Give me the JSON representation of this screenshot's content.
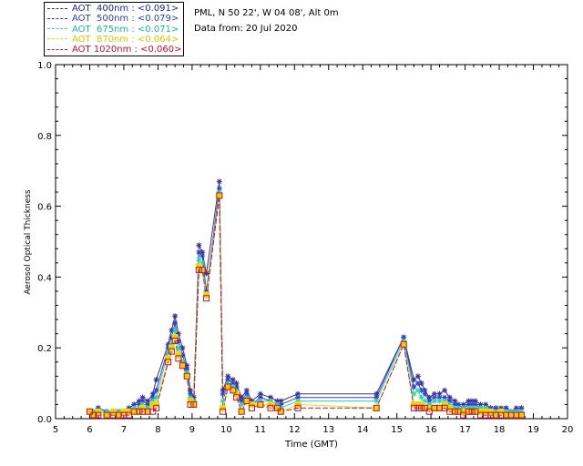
{
  "header": {
    "site": "PML, N 50 22', W 04 08', Alt 0m",
    "date_line": "Data from: 20 Jul 2020"
  },
  "legend": [
    {
      "label": "AOT  400nm : <0.091>",
      "line_color": "#3a2f8f",
      "text_color": "#1f1fb0"
    },
    {
      "label": "AOT  500nm : <0.079>",
      "line_color": "#2a3fd0",
      "text_color": "#2a3fd0"
    },
    {
      "label": "AOT  675nm : <0.071>",
      "line_color": "#25d4b4",
      "text_color": "#18b8a0"
    },
    {
      "label": "AOT  870nm : <0.064>",
      "line_color": "#e0e020",
      "text_color": "#d8c800"
    },
    {
      "label": "AOT 1020nm : <0.060>",
      "line_color": "#c8102e",
      "text_color": "#c8102e"
    }
  ],
  "chart_data": {
    "type": "line",
    "xlabel": "Time (GMT)",
    "ylabel": "Aerosol Optical Thickness",
    "xlim": [
      5,
      20
    ],
    "ylim": [
      0,
      1.0
    ],
    "xticks": [
      "5",
      "6",
      "7",
      "8",
      "9",
      "10",
      "11",
      "12",
      "13",
      "14",
      "15",
      "16",
      "17",
      "18",
      "19",
      "20"
    ],
    "yticks": [
      "0.0",
      "0.2",
      "0.4",
      "0.6",
      "0.8",
      "1.0"
    ],
    "marker": "asterisk for 400/500/675nm, open squares for 870/1020nm",
    "x": [
      6.0,
      6.12,
      6.25,
      6.5,
      6.7,
      6.85,
      7.0,
      7.15,
      7.3,
      7.45,
      7.55,
      7.7,
      7.85,
      7.95,
      8.3,
      8.4,
      8.5,
      8.6,
      8.72,
      8.85,
      8.95,
      9.05,
      9.2,
      9.3,
      9.42,
      9.8,
      9.9,
      10.05,
      10.2,
      10.3,
      10.45,
      10.6,
      10.75,
      11.0,
      11.3,
      11.5,
      11.6,
      12.1,
      14.4,
      15.2,
      15.5,
      15.62,
      15.72,
      15.82,
      15.95,
      16.1,
      16.25,
      16.4,
      16.55,
      16.7,
      16.8,
      16.95,
      17.1,
      17.2,
      17.3,
      17.45,
      17.6,
      17.75,
      17.9,
      18.05,
      18.2,
      18.35,
      18.5,
      18.65
    ],
    "series": [
      {
        "name": "AOT 400nm",
        "values": [
          0.02,
          0.02,
          0.03,
          0.02,
          0.02,
          0.02,
          0.02,
          0.03,
          0.04,
          0.05,
          0.06,
          0.05,
          0.07,
          0.11,
          0.21,
          0.25,
          0.29,
          0.24,
          0.2,
          0.15,
          0.08,
          0.06,
          0.49,
          0.47,
          0.41,
          0.67,
          0.08,
          0.12,
          0.11,
          0.1,
          0.06,
          0.08,
          0.05,
          0.07,
          0.06,
          0.05,
          0.05,
          0.07,
          0.07,
          0.23,
          0.11,
          0.12,
          0.1,
          0.08,
          0.06,
          0.07,
          0.07,
          0.08,
          0.06,
          0.05,
          0.04,
          0.04,
          0.05,
          0.05,
          0.05,
          0.04,
          0.04,
          0.03,
          0.03,
          0.03,
          0.03,
          0.02,
          0.03,
          0.03
        ]
      },
      {
        "name": "AOT 500nm",
        "values": [
          0.02,
          0.02,
          0.03,
          0.02,
          0.02,
          0.02,
          0.02,
          0.03,
          0.04,
          0.04,
          0.05,
          0.04,
          0.06,
          0.08,
          0.2,
          0.23,
          0.27,
          0.22,
          0.18,
          0.14,
          0.07,
          0.05,
          0.47,
          0.46,
          0.36,
          0.65,
          0.07,
          0.11,
          0.1,
          0.09,
          0.05,
          0.07,
          0.04,
          0.06,
          0.05,
          0.04,
          0.04,
          0.06,
          0.06,
          0.23,
          0.09,
          0.1,
          0.08,
          0.07,
          0.05,
          0.06,
          0.06,
          0.06,
          0.05,
          0.04,
          0.04,
          0.03,
          0.04,
          0.04,
          0.04,
          0.03,
          0.03,
          0.03,
          0.03,
          0.02,
          0.03,
          0.02,
          0.02,
          0.03
        ]
      },
      {
        "name": "AOT 675nm",
        "values": [
          0.02,
          0.02,
          0.02,
          0.02,
          0.02,
          0.02,
          0.02,
          0.02,
          0.03,
          0.03,
          0.04,
          0.03,
          0.05,
          0.06,
          0.19,
          0.21,
          0.25,
          0.2,
          0.16,
          0.13,
          0.06,
          0.05,
          0.45,
          0.44,
          0.35,
          0.64,
          0.05,
          0.1,
          0.09,
          0.08,
          0.04,
          0.06,
          0.04,
          0.05,
          0.05,
          0.04,
          0.03,
          0.05,
          0.05,
          0.22,
          0.07,
          0.08,
          0.06,
          0.05,
          0.04,
          0.05,
          0.05,
          0.05,
          0.04,
          0.03,
          0.03,
          0.03,
          0.03,
          0.03,
          0.03,
          0.03,
          0.03,
          0.02,
          0.02,
          0.02,
          0.02,
          0.02,
          0.02,
          0.02
        ]
      },
      {
        "name": "AOT 870nm",
        "values": [
          0.02,
          0.01,
          0.02,
          0.01,
          0.02,
          0.01,
          0.02,
          0.02,
          0.02,
          0.02,
          0.03,
          0.02,
          0.04,
          0.04,
          0.17,
          0.2,
          0.23,
          0.18,
          0.15,
          0.12,
          0.05,
          0.04,
          0.43,
          0.42,
          0.35,
          0.63,
          0.03,
          0.09,
          0.08,
          0.07,
          0.02,
          0.05,
          0.04,
          0.04,
          0.04,
          0.03,
          0.02,
          0.04,
          0.03,
          0.21,
          0.04,
          0.04,
          0.04,
          0.03,
          0.03,
          0.03,
          0.03,
          0.04,
          0.03,
          0.02,
          0.02,
          0.02,
          0.02,
          0.02,
          0.02,
          0.02,
          0.02,
          0.02,
          0.01,
          0.02,
          0.01,
          0.01,
          0.01,
          0.01
        ]
      },
      {
        "name": "AOT 1020nm",
        "values": [
          0.02,
          0.01,
          0.01,
          0.01,
          0.01,
          0.01,
          0.01,
          0.01,
          0.02,
          0.02,
          0.02,
          0.02,
          0.02,
          0.03,
          0.16,
          0.19,
          0.22,
          0.17,
          0.15,
          0.12,
          0.04,
          0.04,
          0.42,
          0.42,
          0.34,
          0.63,
          0.02,
          0.09,
          0.08,
          0.06,
          0.02,
          0.05,
          0.03,
          0.04,
          0.03,
          0.03,
          0.02,
          0.03,
          0.03,
          0.21,
          0.03,
          0.03,
          0.03,
          0.03,
          0.02,
          0.03,
          0.03,
          0.03,
          0.02,
          0.02,
          0.02,
          0.01,
          0.02,
          0.02,
          0.02,
          0.01,
          0.01,
          0.01,
          0.01,
          0.01,
          0.01,
          0.01,
          0.01,
          0.01
        ]
      }
    ]
  }
}
